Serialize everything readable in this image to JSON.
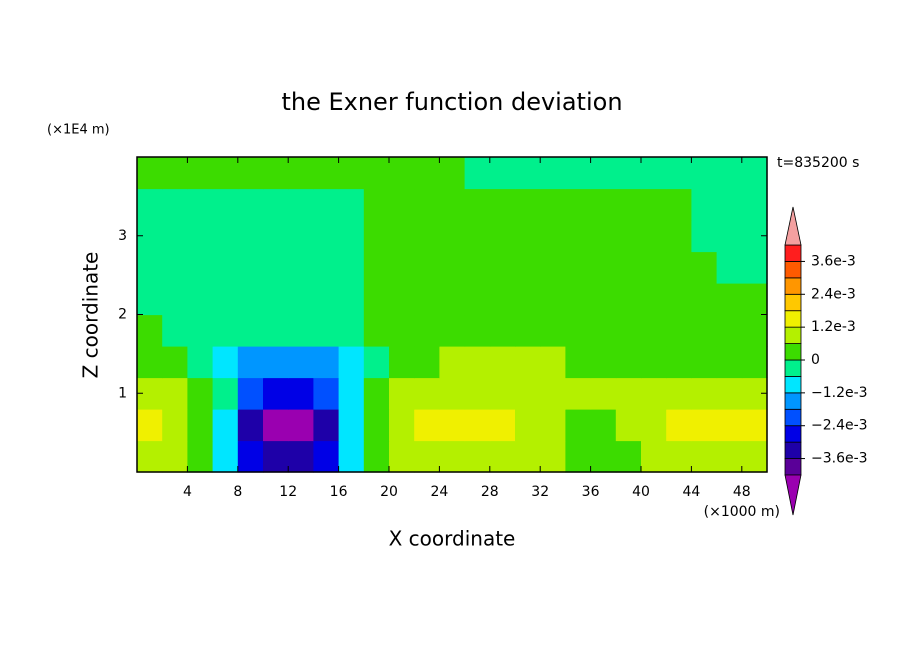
{
  "chart_data": {
    "type": "contour",
    "title": "the Exner function deviation",
    "x_label": "X coordinate",
    "y_label": "Z coordinate",
    "x_unit": "(×1000 m)",
    "y_unit": "(×1E4 m)",
    "annotation": "t=835200 s",
    "xlim": [
      0,
      50
    ],
    "ylim": [
      0,
      4
    ],
    "xticks": [
      4,
      8,
      12,
      16,
      20,
      24,
      28,
      32,
      36,
      40,
      44,
      48
    ],
    "yticks": [
      1,
      2,
      3
    ],
    "x": [
      1,
      3,
      5,
      7,
      9,
      11,
      13,
      15,
      17,
      19,
      21,
      23,
      25,
      27,
      29,
      31,
      33,
      35,
      37,
      39,
      41,
      43,
      45,
      47,
      49
    ],
    "y": [
      0.2,
      0.6,
      1.0,
      1.4,
      1.8,
      2.2,
      2.6,
      3.0,
      3.4,
      3.8
    ],
    "z": [
      [
        0.0009,
        0.0009,
        0.0002,
        -0.0009,
        -0.0026,
        -0.0036,
        -0.0036,
        -0.0026,
        -0.0009,
        0.0002,
        0.0008,
        0.0008,
        0.0008,
        0.0008,
        0.0008,
        0.0008,
        0.0008,
        0.0003,
        0.0003,
        0.0003,
        0.0008,
        0.0008,
        0.0008,
        0.0008,
        0.0008
      ],
      [
        0.0014,
        0.0009,
        0.0002,
        -0.0011,
        -0.0032,
        -0.0045,
        -0.0045,
        -0.0032,
        -0.0011,
        0.0002,
        0.0009,
        0.0014,
        0.0014,
        0.0014,
        0.0014,
        0.0009,
        0.0009,
        0.0003,
        0.0003,
        0.0009,
        0.0009,
        0.0014,
        0.0014,
        0.0014,
        0.0014
      ],
      [
        0.0008,
        0.0008,
        0.0002,
        -0.0004,
        -0.002,
        -0.0028,
        -0.0028,
        -0.002,
        -0.0009,
        0.0002,
        0.0008,
        0.0008,
        0.0008,
        0.0008,
        0.0008,
        0.0008,
        0.0008,
        0.0008,
        0.0008,
        0.0008,
        0.0008,
        0.0008,
        0.0008,
        0.0008,
        0.0008
      ],
      [
        0.0003,
        0.0003,
        -0.0003,
        -0.0008,
        -0.0014,
        -0.0014,
        -0.0014,
        -0.0014,
        -0.0008,
        -0.0003,
        0.0002,
        0.0002,
        0.0007,
        0.0007,
        0.0007,
        0.0007,
        0.0007,
        0.0002,
        0.0002,
        0.0002,
        0.0002,
        0.0002,
        0.0002,
        0.0002,
        0.0002
      ],
      [
        0.0002,
        -0.0003,
        -0.0003,
        -0.0003,
        -0.0003,
        -0.0003,
        -0.0003,
        -0.0003,
        -0.0003,
        0.0002,
        0.0002,
        0.0002,
        0.0002,
        0.0002,
        0.0002,
        0.0002,
        0.0002,
        0.0002,
        0.0002,
        0.0002,
        0.0002,
        0.0002,
        0.0002,
        0.0002,
        0.0002
      ],
      [
        -0.0003,
        -0.0003,
        -0.0003,
        -0.0003,
        -0.0003,
        -0.0003,
        -0.0003,
        -0.0003,
        -0.0003,
        0.0002,
        0.0002,
        0.0002,
        0.0002,
        0.0002,
        0.0002,
        0.0002,
        0.0002,
        0.0002,
        0.0002,
        0.0002,
        0.0002,
        0.0002,
        0.0002,
        0.0002,
        0.0002
      ],
      [
        -0.0003,
        -0.0003,
        -0.0003,
        -0.0003,
        -0.0003,
        -0.0003,
        -0.0003,
        -0.0003,
        -0.0003,
        0.0002,
        0.0002,
        0.0002,
        0.0002,
        0.0002,
        0.0002,
        0.0002,
        0.0002,
        0.0002,
        0.0002,
        0.0002,
        0.0002,
        0.0002,
        0.0002,
        -0.0003,
        -0.0003
      ],
      [
        -0.0003,
        -0.0003,
        -0.0003,
        -0.0003,
        -0.0003,
        -0.0003,
        -0.0003,
        -0.0003,
        -0.0003,
        0.0002,
        0.0002,
        0.0002,
        0.0002,
        0.0002,
        0.0002,
        0.0002,
        0.0002,
        0.0002,
        0.0002,
        0.0002,
        0.0002,
        0.0002,
        -0.0003,
        -0.0003,
        -0.0003
      ],
      [
        -0.0003,
        -0.0003,
        -0.0003,
        -0.0003,
        -0.0003,
        -0.0003,
        -0.0003,
        -0.0003,
        -0.0003,
        0.0002,
        0.0002,
        0.0002,
        0.0002,
        0.0002,
        0.0002,
        0.0002,
        0.0002,
        0.0002,
        0.0002,
        0.0002,
        0.0002,
        0.0002,
        -0.0003,
        -0.0003,
        -0.0003
      ],
      [
        0.0002,
        0.0002,
        0.0002,
        0.0002,
        0.0002,
        0.0002,
        0.0002,
        0.0002,
        0.0002,
        0.0002,
        0.0002,
        0.0002,
        0.0002,
        -0.0003,
        -0.0003,
        -0.0003,
        -0.0003,
        -0.0003,
        -0.0003,
        -0.0003,
        -0.0003,
        -0.0003,
        -0.0003,
        -0.0003,
        -0.0003
      ]
    ],
    "levels": [
      -0.0042,
      -0.0036,
      -0.003,
      -0.0024,
      -0.0018,
      -0.0012,
      -0.0006,
      0,
      0.0006,
      0.0012,
      0.0018,
      0.0024,
      0.003,
      0.0036,
      0.0042
    ],
    "colors": [
      "#9a00b0",
      "#5a0098",
      "#1e00a8",
      "#0000e6",
      "#0050ff",
      "#0096ff",
      "#00e6ff",
      "#00f08c",
      "#3cdc00",
      "#b4f000",
      "#f0f000",
      "#ffc800",
      "#ff9600",
      "#ff5a00",
      "#ff1e1e",
      "#f4a0a0"
    ],
    "colorbar_ticks": [
      {
        "value": 0.0036,
        "label": "3.6e-3"
      },
      {
        "value": 0.0024,
        "label": "2.4e-3"
      },
      {
        "value": 0.0012,
        "label": "1.2e-3"
      },
      0,
      {
        "value": -0.0012,
        "label": "−1.2e-3"
      },
      {
        "value": -0.0024,
        "label": "−2.4e-3"
      },
      {
        "value": -0.0036,
        "label": "−3.6e-3"
      }
    ]
  }
}
